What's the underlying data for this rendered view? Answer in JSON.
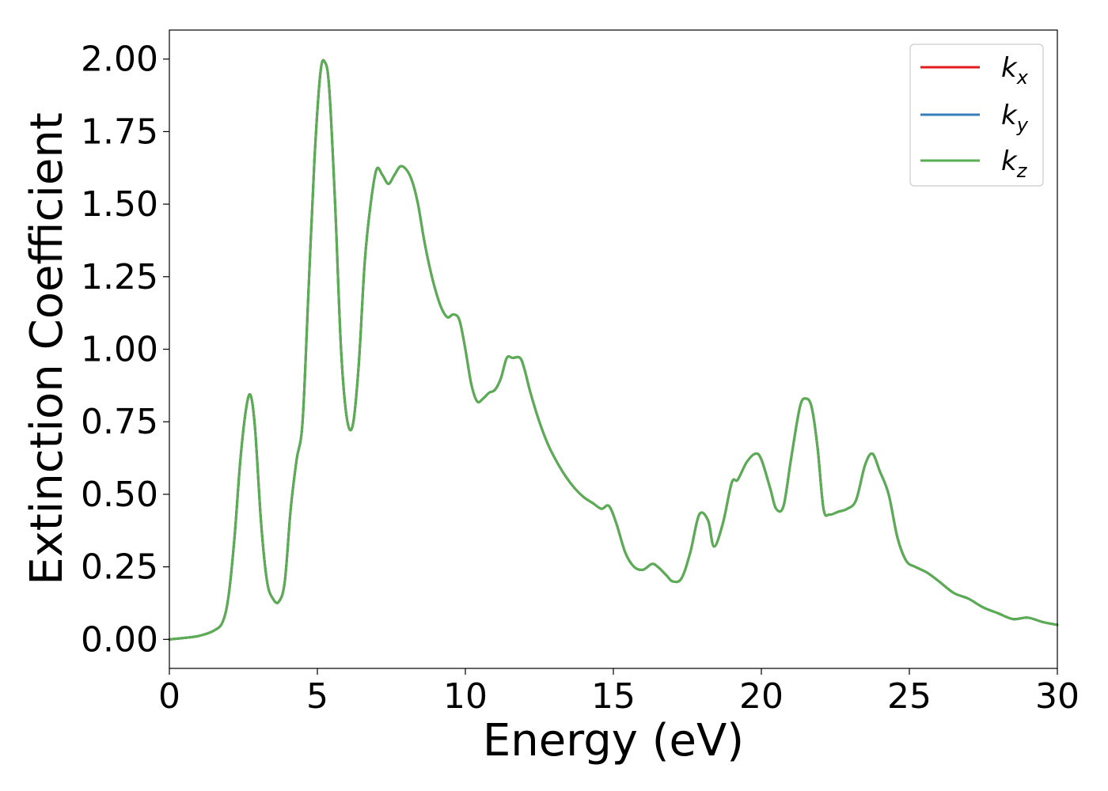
{
  "chart_data": {
    "type": "line",
    "title": "",
    "xlabel": "Energy (eV)",
    "ylabel": "Extinction Coefficient",
    "xlim": [
      0,
      30
    ],
    "ylim": [
      -0.1,
      2.1
    ],
    "xticks": [
      0,
      5,
      10,
      15,
      20,
      25,
      30
    ],
    "xtick_labels": [
      "0",
      "5",
      "10",
      "15",
      "20",
      "25",
      "30"
    ],
    "yticks": [
      0,
      0.25,
      0.5,
      0.75,
      1.0,
      1.25,
      1.5,
      1.75,
      2.0
    ],
    "ytick_labels": [
      "0.00",
      "0.25",
      "0.50",
      "0.75",
      "1.00",
      "1.25",
      "1.50",
      "1.75",
      "2.00"
    ],
    "grid": false,
    "legend": "top-right",
    "x": [
      0,
      0.5,
      1.0,
      1.5,
      1.8,
      2.0,
      2.2,
      2.4,
      2.6,
      2.75,
      2.9,
      3.1,
      3.3,
      3.5,
      3.7,
      3.9,
      4.1,
      4.3,
      4.5,
      4.7,
      4.9,
      5.1,
      5.25,
      5.4,
      5.6,
      5.8,
      6.0,
      6.2,
      6.4,
      6.6,
      6.8,
      7.0,
      7.2,
      7.4,
      7.6,
      7.8,
      8.0,
      8.2,
      8.4,
      8.6,
      8.8,
      9.0,
      9.2,
      9.4,
      9.6,
      9.8,
      10.0,
      10.2,
      10.4,
      10.6,
      10.8,
      11.0,
      11.2,
      11.4,
      11.6,
      11.85,
      12.0,
      12.2,
      12.5,
      12.8,
      13.1,
      13.4,
      13.7,
      14.0,
      14.3,
      14.6,
      14.85,
      15.1,
      15.4,
      15.7,
      16.0,
      16.3,
      16.5,
      16.8,
      17.0,
      17.3,
      17.6,
      17.9,
      18.2,
      18.4,
      18.7,
      19.0,
      19.2,
      19.5,
      19.8,
      20.0,
      20.3,
      20.5,
      20.75,
      21.0,
      21.3,
      21.5,
      21.7,
      21.9,
      22.1,
      22.3,
      22.6,
      22.9,
      23.2,
      23.5,
      23.75,
      24.0,
      24.3,
      24.6,
      24.9,
      25.2,
      25.6,
      26.0,
      26.5,
      27.0,
      27.5,
      28.0,
      28.5,
      29.0,
      29.5,
      30.0
    ],
    "series": [
      {
        "name": "k_x",
        "color": "#e41a1c",
        "values": [
          0.0,
          0.005,
          0.012,
          0.03,
          0.06,
          0.15,
          0.35,
          0.62,
          0.8,
          0.84,
          0.72,
          0.4,
          0.2,
          0.14,
          0.13,
          0.2,
          0.45,
          0.62,
          0.75,
          1.2,
          1.65,
          1.95,
          1.99,
          1.9,
          1.5,
          1.0,
          0.76,
          0.74,
          0.95,
          1.3,
          1.5,
          1.62,
          1.6,
          1.57,
          1.6,
          1.63,
          1.62,
          1.58,
          1.5,
          1.38,
          1.28,
          1.2,
          1.14,
          1.11,
          1.12,
          1.1,
          1.0,
          0.88,
          0.82,
          0.83,
          0.85,
          0.86,
          0.9,
          0.97,
          0.97,
          0.97,
          0.93,
          0.85,
          0.75,
          0.67,
          0.61,
          0.56,
          0.52,
          0.49,
          0.47,
          0.45,
          0.46,
          0.4,
          0.3,
          0.25,
          0.24,
          0.26,
          0.25,
          0.22,
          0.2,
          0.21,
          0.3,
          0.43,
          0.41,
          0.32,
          0.4,
          0.54,
          0.55,
          0.61,
          0.64,
          0.62,
          0.52,
          0.45,
          0.46,
          0.62,
          0.8,
          0.83,
          0.8,
          0.66,
          0.45,
          0.43,
          0.44,
          0.45,
          0.48,
          0.6,
          0.64,
          0.58,
          0.5,
          0.35,
          0.27,
          0.25,
          0.23,
          0.2,
          0.16,
          0.14,
          0.11,
          0.09,
          0.07,
          0.075,
          0.06,
          0.05
        ]
      },
      {
        "name": "k_y",
        "color": "#377eb8",
        "values": [
          0.0,
          0.005,
          0.012,
          0.03,
          0.06,
          0.15,
          0.35,
          0.62,
          0.8,
          0.84,
          0.72,
          0.4,
          0.2,
          0.14,
          0.13,
          0.2,
          0.45,
          0.62,
          0.75,
          1.2,
          1.65,
          1.95,
          1.99,
          1.9,
          1.5,
          1.0,
          0.76,
          0.74,
          0.95,
          1.3,
          1.5,
          1.62,
          1.6,
          1.57,
          1.6,
          1.63,
          1.62,
          1.58,
          1.5,
          1.38,
          1.28,
          1.2,
          1.14,
          1.11,
          1.12,
          1.1,
          1.0,
          0.88,
          0.82,
          0.83,
          0.85,
          0.86,
          0.9,
          0.97,
          0.97,
          0.97,
          0.93,
          0.85,
          0.75,
          0.67,
          0.61,
          0.56,
          0.52,
          0.49,
          0.47,
          0.45,
          0.46,
          0.4,
          0.3,
          0.25,
          0.24,
          0.26,
          0.25,
          0.22,
          0.2,
          0.21,
          0.3,
          0.43,
          0.41,
          0.32,
          0.4,
          0.54,
          0.55,
          0.61,
          0.64,
          0.62,
          0.52,
          0.45,
          0.46,
          0.62,
          0.8,
          0.83,
          0.8,
          0.66,
          0.45,
          0.43,
          0.44,
          0.45,
          0.48,
          0.6,
          0.64,
          0.58,
          0.5,
          0.35,
          0.27,
          0.25,
          0.23,
          0.2,
          0.16,
          0.14,
          0.11,
          0.09,
          0.07,
          0.075,
          0.06,
          0.05
        ]
      },
      {
        "name": "k_z",
        "color": "#5aae52",
        "values": [
          0.0,
          0.005,
          0.012,
          0.03,
          0.06,
          0.15,
          0.35,
          0.62,
          0.8,
          0.84,
          0.72,
          0.4,
          0.2,
          0.14,
          0.13,
          0.2,
          0.45,
          0.62,
          0.75,
          1.2,
          1.65,
          1.95,
          1.99,
          1.9,
          1.5,
          1.0,
          0.76,
          0.74,
          0.95,
          1.3,
          1.5,
          1.62,
          1.6,
          1.57,
          1.6,
          1.63,
          1.62,
          1.58,
          1.5,
          1.38,
          1.28,
          1.2,
          1.14,
          1.11,
          1.12,
          1.1,
          1.0,
          0.88,
          0.82,
          0.83,
          0.85,
          0.86,
          0.9,
          0.97,
          0.97,
          0.97,
          0.93,
          0.85,
          0.75,
          0.67,
          0.61,
          0.56,
          0.52,
          0.49,
          0.47,
          0.45,
          0.46,
          0.4,
          0.3,
          0.25,
          0.24,
          0.26,
          0.25,
          0.22,
          0.2,
          0.21,
          0.3,
          0.43,
          0.41,
          0.32,
          0.4,
          0.54,
          0.55,
          0.61,
          0.64,
          0.62,
          0.52,
          0.45,
          0.46,
          0.62,
          0.8,
          0.83,
          0.8,
          0.66,
          0.45,
          0.43,
          0.44,
          0.45,
          0.48,
          0.6,
          0.64,
          0.58,
          0.5,
          0.35,
          0.27,
          0.25,
          0.23,
          0.2,
          0.16,
          0.14,
          0.11,
          0.09,
          0.07,
          0.075,
          0.06,
          0.05
        ]
      }
    ],
    "legend_entries": [
      {
        "base": "k",
        "sub": "x"
      },
      {
        "base": "k",
        "sub": "y"
      },
      {
        "base": "k",
        "sub": "z"
      }
    ]
  }
}
